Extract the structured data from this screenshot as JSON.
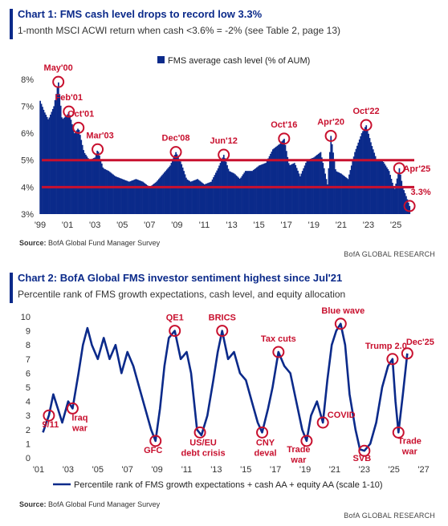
{
  "chart1": {
    "title": "Chart 1: FMS cash level drops to record low 3.3%",
    "subtitle": "1-month MSCI ACWI return when cash <3.6% = -2% (see Table 2, page 13)",
    "source_label": "Source:",
    "source_text": "BofA Global Fund Manager Survey",
    "brand": "BofA GLOBAL RESEARCH",
    "colors": {
      "bars": "#0b2a8a",
      "threshold": "#c8102e",
      "annotation": "#c8102e"
    }
  },
  "chart2": {
    "title": "Chart 2: BofA Global FMS investor sentiment highest since Jul'21",
    "subtitle": "Percentile rank of FMS growth expectations, cash level, and equity allocation",
    "source_label": "Source:",
    "source_text": "BofA Global Fund Manager Survey",
    "brand": "BofA GLOBAL RESEARCH",
    "colors": {
      "line": "#0b2a8a",
      "annotation": "#c8102e"
    }
  },
  "chart_data": [
    {
      "type": "bar",
      "title": "Chart 1: FMS cash level drops to record low 3.3%",
      "legend": [
        "FMS average cash level (% of AUM)"
      ],
      "legend_position": "top-right",
      "xlabel": "",
      "ylabel": "",
      "xlim": [
        1999,
        2026.7
      ],
      "ylim": [
        3,
        8.5
      ],
      "y_ticks": [
        3,
        4,
        5,
        6,
        7,
        8
      ],
      "y_tick_labels": [
        "3%",
        "4%",
        "5%",
        "6%",
        "7%",
        "8%"
      ],
      "x_tick_labels": [
        "'99",
        "'01",
        "'03",
        "'05",
        "'07",
        "'09",
        "'11",
        "'13",
        "'15",
        "'17",
        "'19",
        "'21",
        "'23",
        "'25"
      ],
      "x_tick_years": [
        1999,
        2001,
        2003,
        2005,
        2007,
        2009,
        2011,
        2013,
        2015,
        2017,
        2019,
        2021,
        2023,
        2025
      ],
      "reference_lines": [
        5.0,
        4.0
      ],
      "series": [
        {
          "name": "FMS average cash level (% of AUM)",
          "x": [
            1999.0,
            1999.3,
            1999.6,
            2000.0,
            2000.33,
            2000.6,
            2001.0,
            2001.1,
            2001.5,
            2001.8,
            2002.2,
            2002.6,
            2003.0,
            2003.2,
            2003.6,
            2004.0,
            2004.5,
            2005.0,
            2005.5,
            2006.0,
            2006.5,
            2007.0,
            2007.5,
            2008.0,
            2008.5,
            2008.92,
            2009.3,
            2009.7,
            2010.0,
            2010.5,
            2011.0,
            2011.5,
            2012.0,
            2012.42,
            2012.8,
            2013.2,
            2013.6,
            2014.0,
            2014.5,
            2015.0,
            2015.5,
            2016.0,
            2016.5,
            2016.83,
            2017.2,
            2017.6,
            2018.0,
            2018.5,
            2019.0,
            2019.5,
            2020.0,
            2020.25,
            2020.6,
            2021.0,
            2021.5,
            2022.0,
            2022.5,
            2022.83,
            2023.2,
            2023.6,
            2024.0,
            2024.5,
            2024.9,
            2025.25,
            2025.5,
            2025.8,
            2026.0
          ],
          "values": [
            7.2,
            6.8,
            6.5,
            7.0,
            7.9,
            6.5,
            6.7,
            6.8,
            6.0,
            6.2,
            5.3,
            5.0,
            5.1,
            5.4,
            4.7,
            4.6,
            4.4,
            4.3,
            4.2,
            4.3,
            4.2,
            4.0,
            4.2,
            4.5,
            4.8,
            5.3,
            4.9,
            4.3,
            4.2,
            4.3,
            4.1,
            4.2,
            4.7,
            5.2,
            4.6,
            4.5,
            4.3,
            4.6,
            4.6,
            4.8,
            4.9,
            5.4,
            5.6,
            5.8,
            4.8,
            4.9,
            4.4,
            5.0,
            5.1,
            5.3,
            4.1,
            5.9,
            4.6,
            4.5,
            4.3,
            5.3,
            6.0,
            6.3,
            5.6,
            5.0,
            5.0,
            4.6,
            3.9,
            4.7,
            4.0,
            3.6,
            3.3
          ]
        }
      ],
      "annotations": [
        {
          "label": "May'00",
          "x": 2000.33,
          "y": 7.9
        },
        {
          "label": "Feb'01",
          "x": 2001.1,
          "y": 6.8
        },
        {
          "label": "Oct'01",
          "x": 2001.8,
          "y": 6.2
        },
        {
          "label": "Mar'03",
          "x": 2003.2,
          "y": 5.4
        },
        {
          "label": "Dec'08",
          "x": 2008.92,
          "y": 5.3
        },
        {
          "label": "Jun'12",
          "x": 2012.42,
          "y": 5.2
        },
        {
          "label": "Oct'16",
          "x": 2016.83,
          "y": 5.8
        },
        {
          "label": "Apr'20",
          "x": 2020.25,
          "y": 5.9
        },
        {
          "label": "Oct'22",
          "x": 2022.83,
          "y": 6.3
        },
        {
          "label": "Apr'25",
          "x": 2025.25,
          "y": 4.7
        },
        {
          "label": "3.3%",
          "x": 2026.0,
          "y": 3.3
        }
      ]
    },
    {
      "type": "line",
      "title": "Chart 2: BofA Global FMS investor sentiment highest since Jul'21",
      "legend": [
        "Percentile rank of FMS growth expectations + cash AA + equity AA (scale 1-10)"
      ],
      "legend_position": "bottom",
      "xlabel": "",
      "ylabel": "",
      "xlim": [
        2001,
        2027.4
      ],
      "ylim": [
        0,
        10
      ],
      "y_ticks": [
        0,
        1,
        2,
        3,
        4,
        5,
        6,
        7,
        8,
        9,
        10
      ],
      "x_tick_labels": [
        "'01",
        "'03",
        "'05",
        "'07",
        "'09",
        "'11",
        "'13",
        "'15",
        "'17",
        "'19",
        "'21",
        "'23",
        "'25",
        "'27"
      ],
      "x_tick_years": [
        2001,
        2003,
        2005,
        2007,
        2009,
        2011,
        2013,
        2015,
        2017,
        2019,
        2021,
        2023,
        2025,
        2027
      ],
      "series": [
        {
          "name": "Percentile rank of FMS growth expectations + cash AA + equity AA (scale 1-10)",
          "x": [
            2001.3,
            2001.7,
            2002.0,
            2002.3,
            2002.6,
            2003.0,
            2003.3,
            2003.7,
            2004.0,
            2004.3,
            2004.6,
            2005.0,
            2005.4,
            2005.8,
            2006.2,
            2006.6,
            2007.0,
            2007.4,
            2007.8,
            2008.2,
            2008.6,
            2008.9,
            2009.2,
            2009.5,
            2009.8,
            2010.2,
            2010.6,
            2011.0,
            2011.3,
            2011.7,
            2012.0,
            2012.4,
            2012.8,
            2013.1,
            2013.4,
            2013.8,
            2014.2,
            2014.6,
            2015.0,
            2015.4,
            2015.8,
            2016.1,
            2016.5,
            2016.8,
            2017.2,
            2017.6,
            2018.0,
            2018.4,
            2018.8,
            2019.1,
            2019.4,
            2019.8,
            2020.2,
            2020.5,
            2020.8,
            2021.1,
            2021.4,
            2021.7,
            2022.0,
            2022.4,
            2022.7,
            2023.0,
            2023.4,
            2023.8,
            2024.2,
            2024.6,
            2024.9,
            2025.1,
            2025.3,
            2025.6,
            2025.9
          ],
          "values": [
            1.8,
            3.0,
            4.5,
            3.5,
            2.5,
            4.0,
            3.5,
            6.0,
            8.0,
            9.2,
            8.0,
            7.0,
            8.5,
            7.0,
            8.0,
            6.0,
            7.5,
            6.5,
            5.0,
            3.5,
            2.0,
            1.2,
            3.5,
            6.5,
            8.5,
            9.0,
            7.0,
            7.5,
            6.0,
            2.0,
            1.6,
            3.0,
            5.5,
            7.5,
            9.0,
            7.0,
            7.5,
            6.0,
            5.5,
            4.0,
            2.5,
            1.8,
            3.5,
            5.0,
            7.5,
            6.5,
            6.0,
            4.0,
            2.0,
            1.2,
            3.0,
            4.0,
            2.5,
            5.5,
            8.0,
            9.0,
            9.5,
            8.0,
            4.5,
            2.0,
            0.6,
            0.5,
            1.0,
            2.5,
            5.0,
            6.5,
            7.0,
            4.0,
            1.8,
            4.5,
            7.4
          ]
        }
      ],
      "annotations": [
        {
          "label": "9/11",
          "x": 2001.7,
          "y": 3.0
        },
        {
          "label": "Iraq\nwar",
          "x": 2003.3,
          "y": 3.5
        },
        {
          "label": "GFC",
          "x": 2008.9,
          "y": 1.2
        },
        {
          "label": "QE1",
          "x": 2010.2,
          "y": 9.0
        },
        {
          "label": "US/EU\ndebt crisis",
          "x": 2011.9,
          "y": 1.8
        },
        {
          "label": "BRICS",
          "x": 2013.4,
          "y": 9.0
        },
        {
          "label": "CNY\ndeval",
          "x": 2016.1,
          "y": 1.8
        },
        {
          "label": "Tax cuts",
          "x": 2017.2,
          "y": 7.5
        },
        {
          "label": "Trade\nwar",
          "x": 2019.1,
          "y": 1.2
        },
        {
          "label": "COVID",
          "x": 2020.2,
          "y": 2.5
        },
        {
          "label": "Blue wave",
          "x": 2021.4,
          "y": 9.5
        },
        {
          "label": "SVB",
          "x": 2023.0,
          "y": 0.5
        },
        {
          "label": "Trump 2.0",
          "x": 2024.9,
          "y": 7.0
        },
        {
          "label": "Trade\nwar",
          "x": 2025.3,
          "y": 1.8
        },
        {
          "label": "Dec'25",
          "x": 2025.9,
          "y": 7.4
        }
      ]
    }
  ]
}
